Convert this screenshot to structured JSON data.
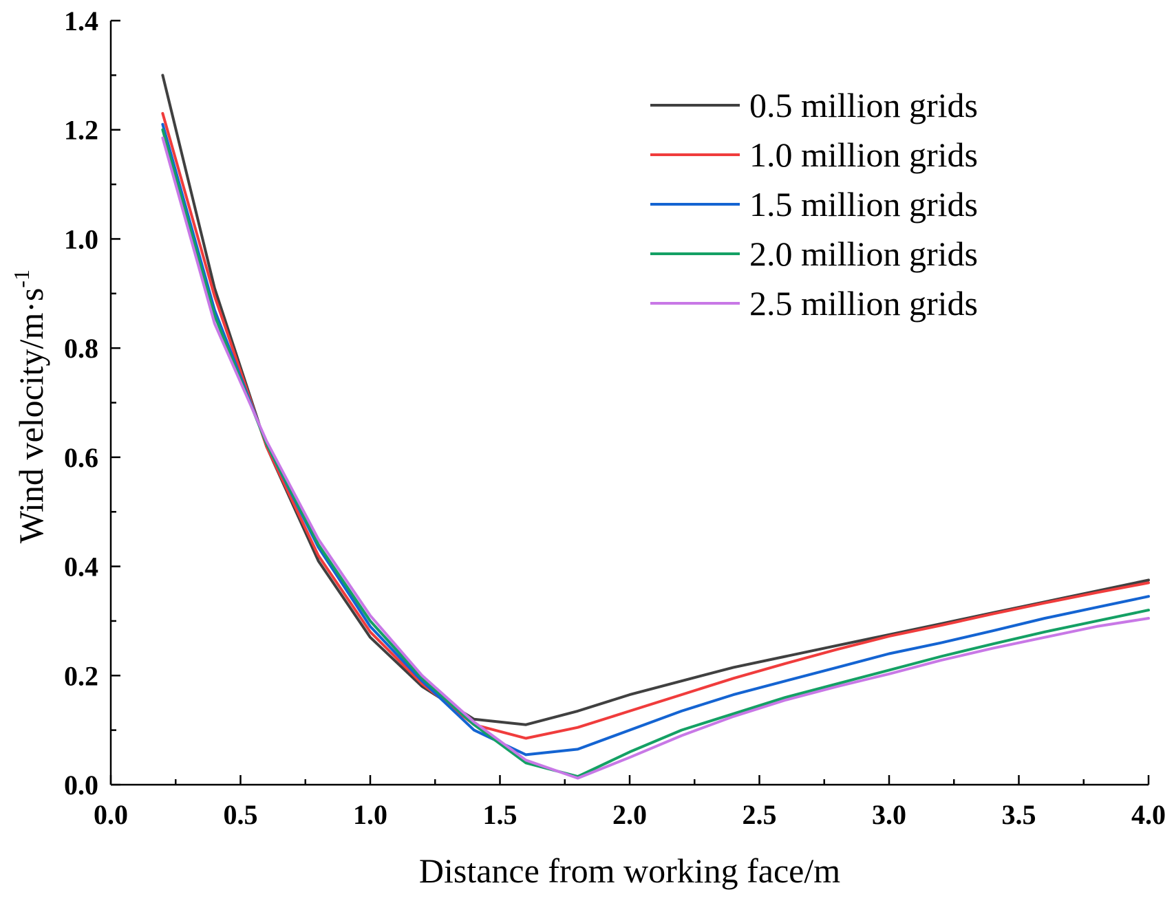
{
  "chart_data": {
    "type": "line",
    "title": "",
    "xlabel": "Distance from working face/m",
    "ylabel_main": "Wind velocity/m·s",
    "ylabel_sup": "-1",
    "xlim": [
      0.0,
      4.0
    ],
    "ylim": [
      0.0,
      1.4
    ],
    "xticks": [
      0.0,
      0.5,
      1.0,
      1.5,
      2.0,
      2.5,
      3.0,
      3.5,
      4.0
    ],
    "xtick_labels": [
      "0.0",
      "0.5",
      "1.0",
      "1.5",
      "2.0",
      "2.5",
      "3.0",
      "3.5",
      "4.0"
    ],
    "yticks": [
      0.0,
      0.2,
      0.4,
      0.6,
      0.8,
      1.0,
      1.2,
      1.4
    ],
    "ytick_labels": [
      "0.0",
      "0.2",
      "0.4",
      "0.6",
      "0.8",
      "1.0",
      "1.2",
      "1.4"
    ],
    "grid": false,
    "legend_position": "top-right",
    "x": [
      0.2,
      0.4,
      0.6,
      0.8,
      1.0,
      1.2,
      1.4,
      1.6,
      1.8,
      2.0,
      2.2,
      2.4,
      2.6,
      2.8,
      3.0,
      3.2,
      3.4,
      3.6,
      3.8,
      4.0
    ],
    "series": [
      {
        "name": "0.5 million grids",
        "color": "#404040",
        "values": [
          1.3,
          0.91,
          0.62,
          0.41,
          0.27,
          0.18,
          0.12,
          0.11,
          0.135,
          0.165,
          0.19,
          0.215,
          0.235,
          0.255,
          0.275,
          0.295,
          0.315,
          0.335,
          0.355,
          0.375
        ]
      },
      {
        "name": "1.0 million grids",
        "color": "#F03C3C",
        "values": [
          1.23,
          0.895,
          0.62,
          0.42,
          0.28,
          0.185,
          0.11,
          0.085,
          0.105,
          0.135,
          0.165,
          0.195,
          0.222,
          0.248,
          0.272,
          0.292,
          0.313,
          0.333,
          0.352,
          0.37
        ]
      },
      {
        "name": "1.5 million grids",
        "color": "#1464D2",
        "values": [
          1.21,
          0.87,
          0.625,
          0.435,
          0.29,
          0.19,
          0.1,
          0.055,
          0.065,
          0.1,
          0.135,
          0.165,
          0.19,
          0.215,
          0.24,
          0.26,
          0.282,
          0.305,
          0.325,
          0.345
        ]
      },
      {
        "name": "2.0 million grids",
        "color": "#14A064",
        "values": [
          1.2,
          0.86,
          0.625,
          0.44,
          0.3,
          0.195,
          0.11,
          0.04,
          0.015,
          0.06,
          0.1,
          0.13,
          0.16,
          0.185,
          0.21,
          0.235,
          0.258,
          0.28,
          0.3,
          0.32
        ]
      },
      {
        "name": "2.5 million grids",
        "color": "#C878E6",
        "values": [
          1.185,
          0.845,
          0.63,
          0.45,
          0.31,
          0.2,
          0.115,
          0.045,
          0.012,
          0.05,
          0.09,
          0.125,
          0.155,
          0.18,
          0.203,
          0.228,
          0.25,
          0.27,
          0.29,
          0.305
        ]
      }
    ]
  }
}
